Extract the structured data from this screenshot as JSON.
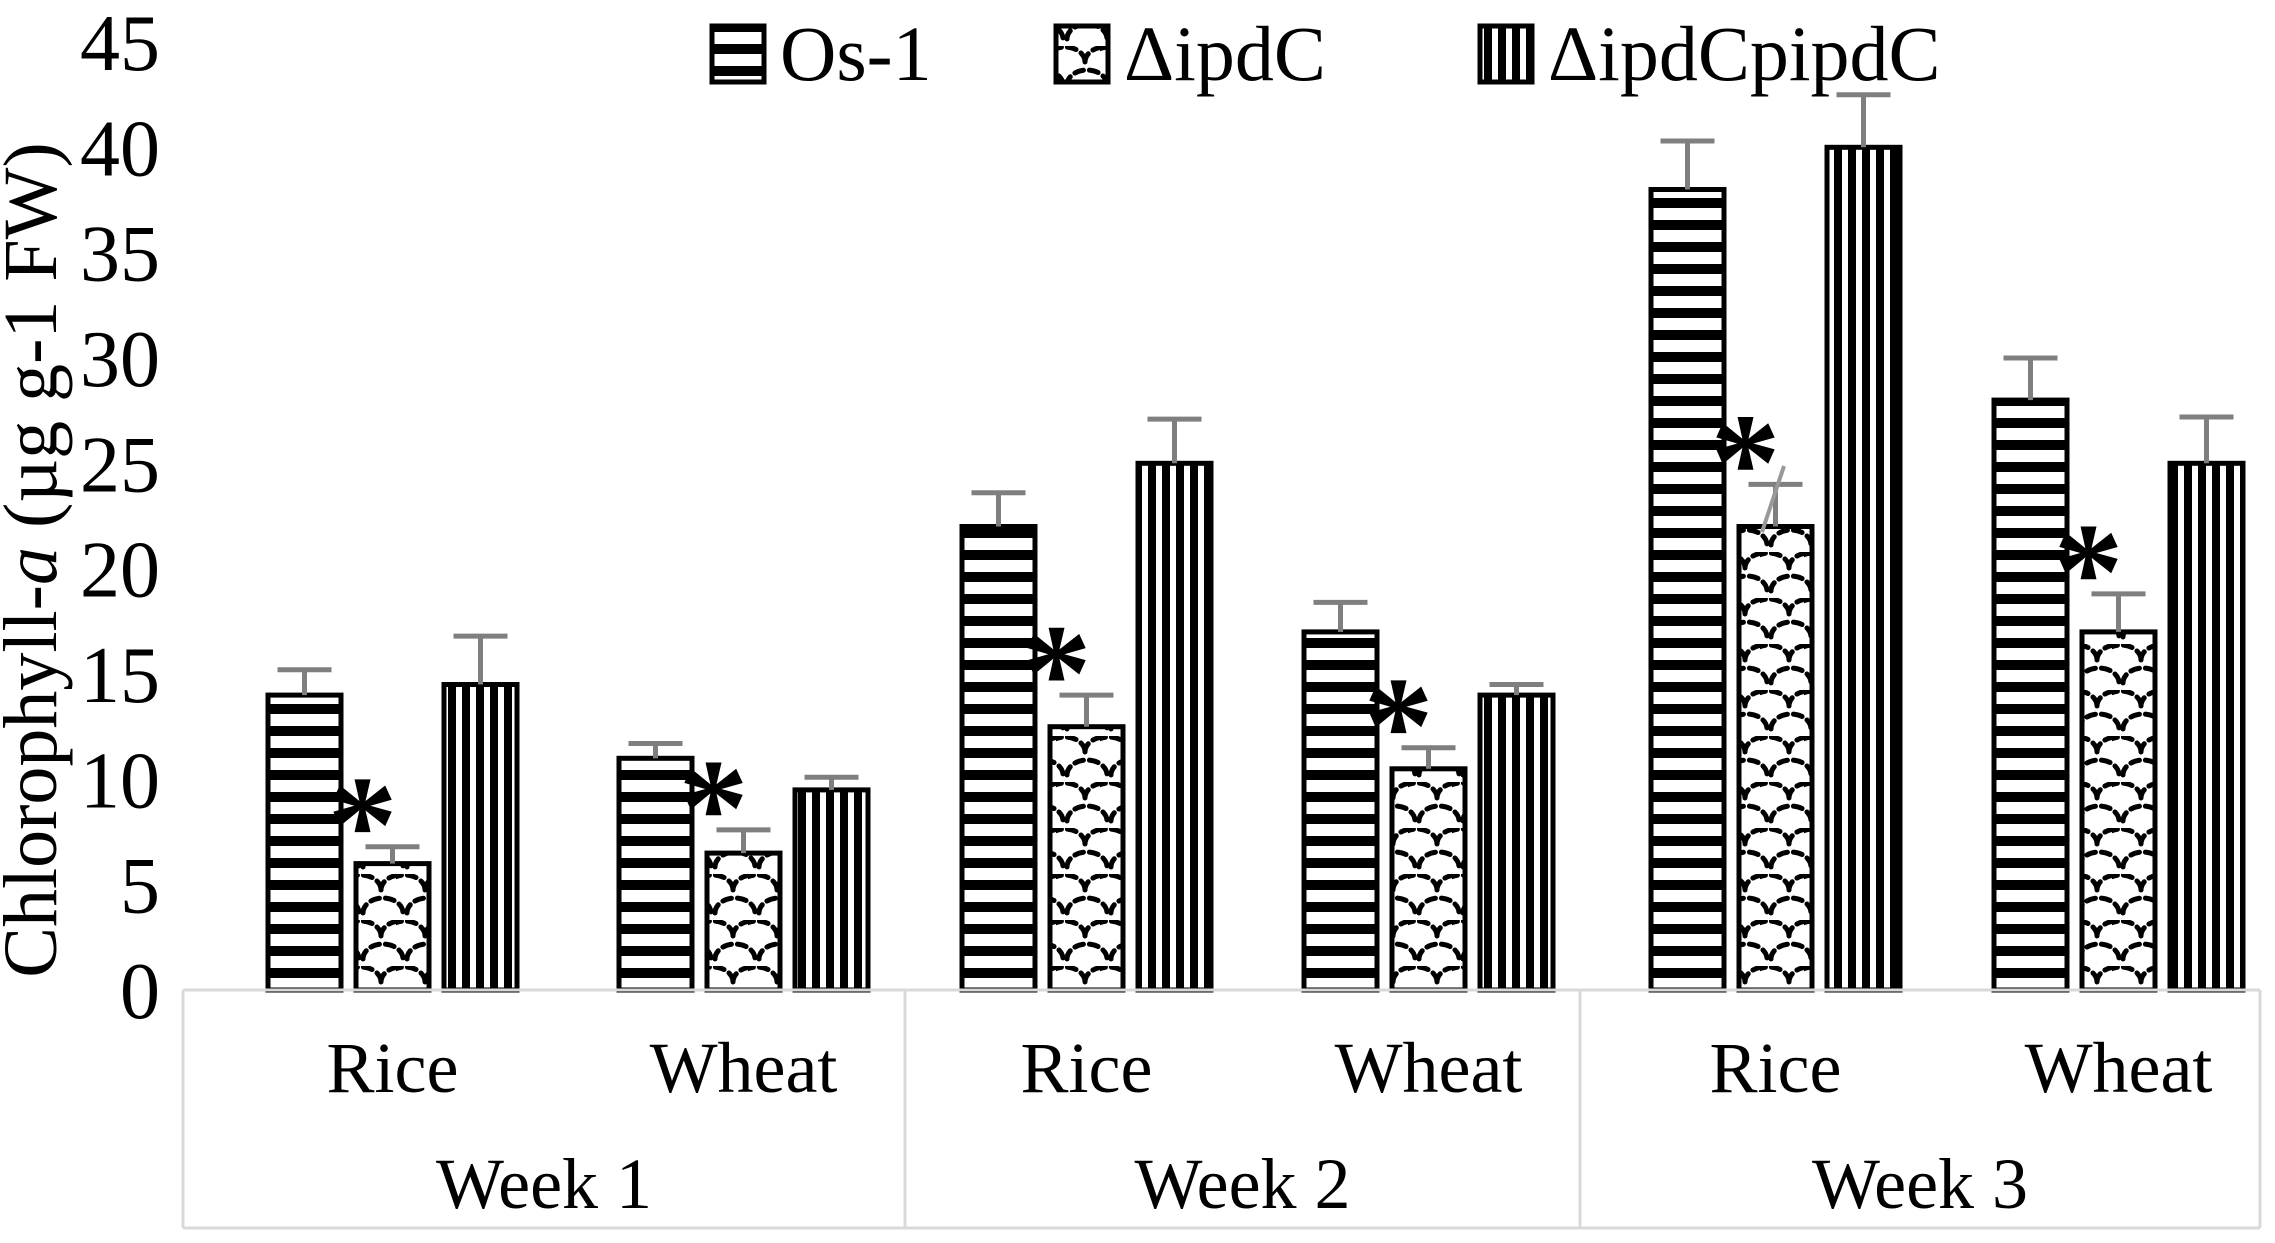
{
  "chart_data": {
    "type": "bar",
    "title": "",
    "ylabel_plain": "Chlorophyll-a (µg g-1 FW)",
    "ylabel_parts": [
      {
        "text": "Chlorophyll-",
        "italic": false
      },
      {
        "text": "a",
        "italic": true
      },
      {
        "text": " (µg g-1 FW)",
        "italic": false
      }
    ],
    "ylim": [
      0,
      45
    ],
    "ytick_step": 5,
    "yticks": [
      0,
      5,
      10,
      15,
      20,
      25,
      30,
      35,
      40,
      45
    ],
    "grid": false,
    "legend": {
      "position": "top",
      "entries": [
        {
          "name": "Os-1",
          "pattern": "horizontal-stripes"
        },
        {
          "name": "ΔipdC",
          "pattern": "scales"
        },
        {
          "name": "ΔipdCpipdC",
          "pattern": "vertical-stripes"
        }
      ]
    },
    "group_labels": [
      "Week 1",
      "Week 2",
      "Week 3"
    ],
    "categories": [
      "Rice",
      "Wheat",
      "Rice",
      "Wheat",
      "Rice",
      "Wheat"
    ],
    "series": [
      {
        "name": "Os-1",
        "values": [
          14,
          11,
          22,
          17,
          38,
          28
        ],
        "errors": [
          1.2,
          0.7,
          1.6,
          1.4,
          2.3,
          2.0
        ],
        "significant": [
          false,
          false,
          false,
          false,
          false,
          false
        ]
      },
      {
        "name": "ΔipdC",
        "values": [
          6,
          6.5,
          12.5,
          10.5,
          22,
          17
        ],
        "errors": [
          0.8,
          1.1,
          1.5,
          1.0,
          2.0,
          1.8
        ],
        "significant": [
          true,
          true,
          true,
          true,
          true,
          true
        ]
      },
      {
        "name": "ΔipdCpipdC",
        "values": [
          14.5,
          9.5,
          25,
          14,
          40,
          25
        ],
        "errors": [
          2.3,
          0.6,
          2.1,
          0.5,
          2.5,
          2.2
        ],
        "significant": [
          false,
          false,
          false,
          false,
          false,
          false
        ]
      }
    ],
    "significance_marker": "*",
    "colors": {
      "bar_fill": "#ffffff",
      "bar_stroke": "#000000",
      "error_bar": "#7f7f7f",
      "table_border": "#d9d9d9",
      "text": "#000000"
    }
  }
}
